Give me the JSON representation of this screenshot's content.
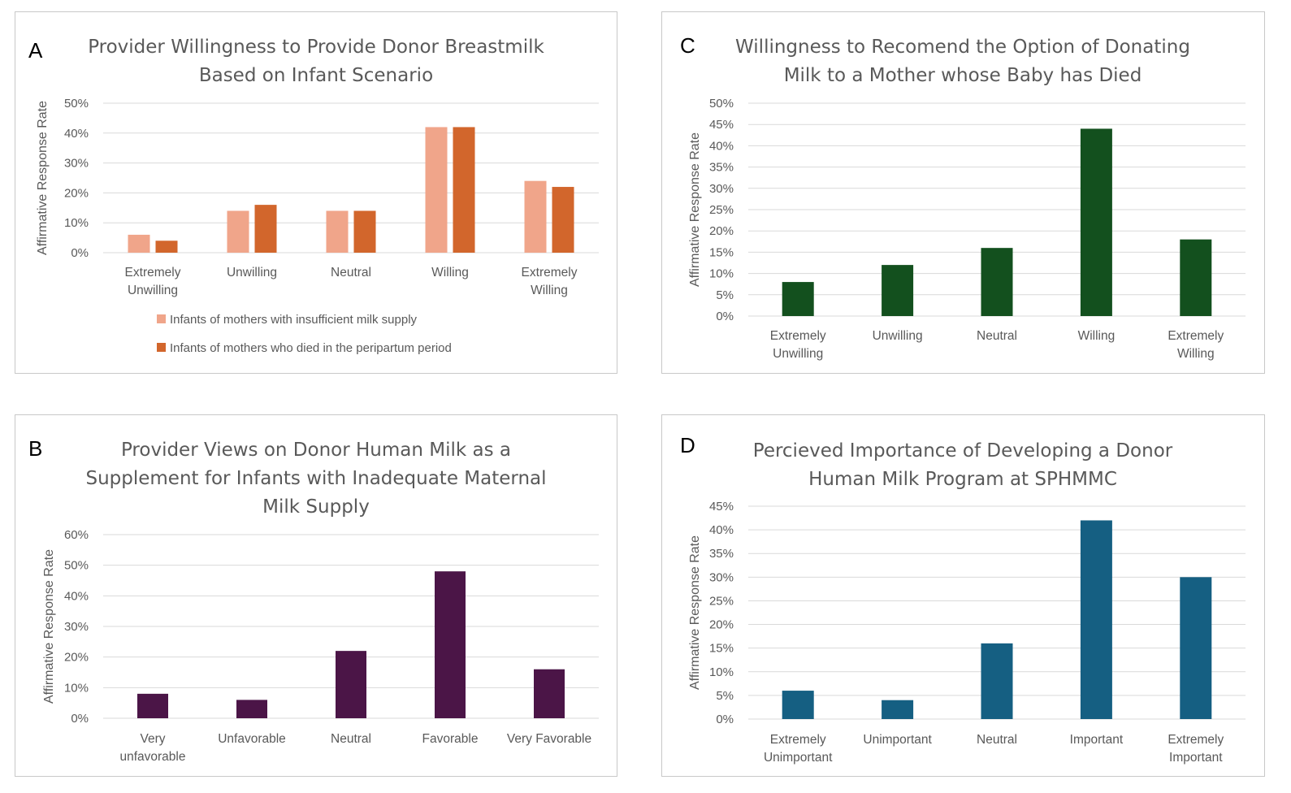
{
  "chart_data": [
    {
      "panel": "A",
      "type": "bar",
      "title": [
        "Provider Willingness to Provide Donor Breastmilk",
        "Based on Infant Scenario"
      ],
      "ylabel": "Affirmative Response Rate",
      "ylim": [
        0,
        50
      ],
      "yticks": [
        "0%",
        "10%",
        "20%",
        "30%",
        "40%",
        "50%"
      ],
      "categories": [
        [
          "Extremely",
          "Unwilling"
        ],
        [
          "Unwilling"
        ],
        [
          "Neutral"
        ],
        [
          "Willing"
        ],
        [
          "Extremely",
          "Willing"
        ]
      ],
      "series": [
        {
          "name": "Infants of mothers with insufficient milk supply",
          "color": "#f0a58a",
          "values": [
            6,
            14,
            14,
            42,
            24
          ]
        },
        {
          "name": "Infants of mothers who died in the peripartum period",
          "color": "#d2662c",
          "values": [
            4,
            16,
            14,
            42,
            22
          ]
        }
      ],
      "legend": "bottom",
      "grid": true
    },
    {
      "panel": "C",
      "type": "bar",
      "title": [
        "Willingness to Recomend the Option of Donating",
        "Milk to a Mother whose Baby has Died"
      ],
      "ylabel": "Affirmative Response Rate",
      "ylim": [
        0,
        50
      ],
      "yticks": [
        "0%",
        "5%",
        "10%",
        "15%",
        "20%",
        "25%",
        "30%",
        "35%",
        "40%",
        "45%",
        "50%"
      ],
      "categories": [
        [
          "Extremely",
          "Unwilling"
        ],
        [
          "Unwilling"
        ],
        [
          "Neutral"
        ],
        [
          "Willing"
        ],
        [
          "Extremely",
          "Willing"
        ]
      ],
      "series": [
        {
          "color": "#13501e",
          "values": [
            8,
            12,
            16,
            44,
            18
          ]
        }
      ],
      "grid": true
    },
    {
      "panel": "B",
      "type": "bar",
      "title": [
        "Provider Views on Donor Human Milk as a",
        "Supplement for Infants with Inadequate Maternal",
        "Milk Supply"
      ],
      "ylabel": "Affirmative Response Rate",
      "ylim": [
        0,
        60
      ],
      "yticks": [
        "0%",
        "10%",
        "20%",
        "30%",
        "40%",
        "50%",
        "60%"
      ],
      "categories": [
        [
          "Very",
          "unfavorable"
        ],
        [
          "Unfavorable"
        ],
        [
          "Neutral"
        ],
        [
          "Favorable"
        ],
        [
          "Very Favorable"
        ]
      ],
      "series": [
        {
          "color": "#4b1547",
          "values": [
            8,
            6,
            22,
            48,
            16
          ]
        }
      ],
      "grid": true
    },
    {
      "panel": "D",
      "type": "bar",
      "title": [
        "Percieved Importance of Developing a Donor",
        "Human Milk Program at SPHMMC"
      ],
      "ylabel": "Affirmative Response Rate",
      "ylim": [
        0,
        45
      ],
      "yticks": [
        "0%",
        "5%",
        "10%",
        "15%",
        "20%",
        "25%",
        "30%",
        "35%",
        "40%",
        "45%"
      ],
      "categories": [
        [
          "Extremely",
          "Unimportant"
        ],
        [
          "Unimportant"
        ],
        [
          "Neutral"
        ],
        [
          "Important"
        ],
        [
          "Extremely",
          "Important"
        ]
      ],
      "series": [
        {
          "color": "#155f82",
          "values": [
            6,
            4,
            16,
            42,
            30
          ]
        }
      ],
      "grid": true
    }
  ]
}
